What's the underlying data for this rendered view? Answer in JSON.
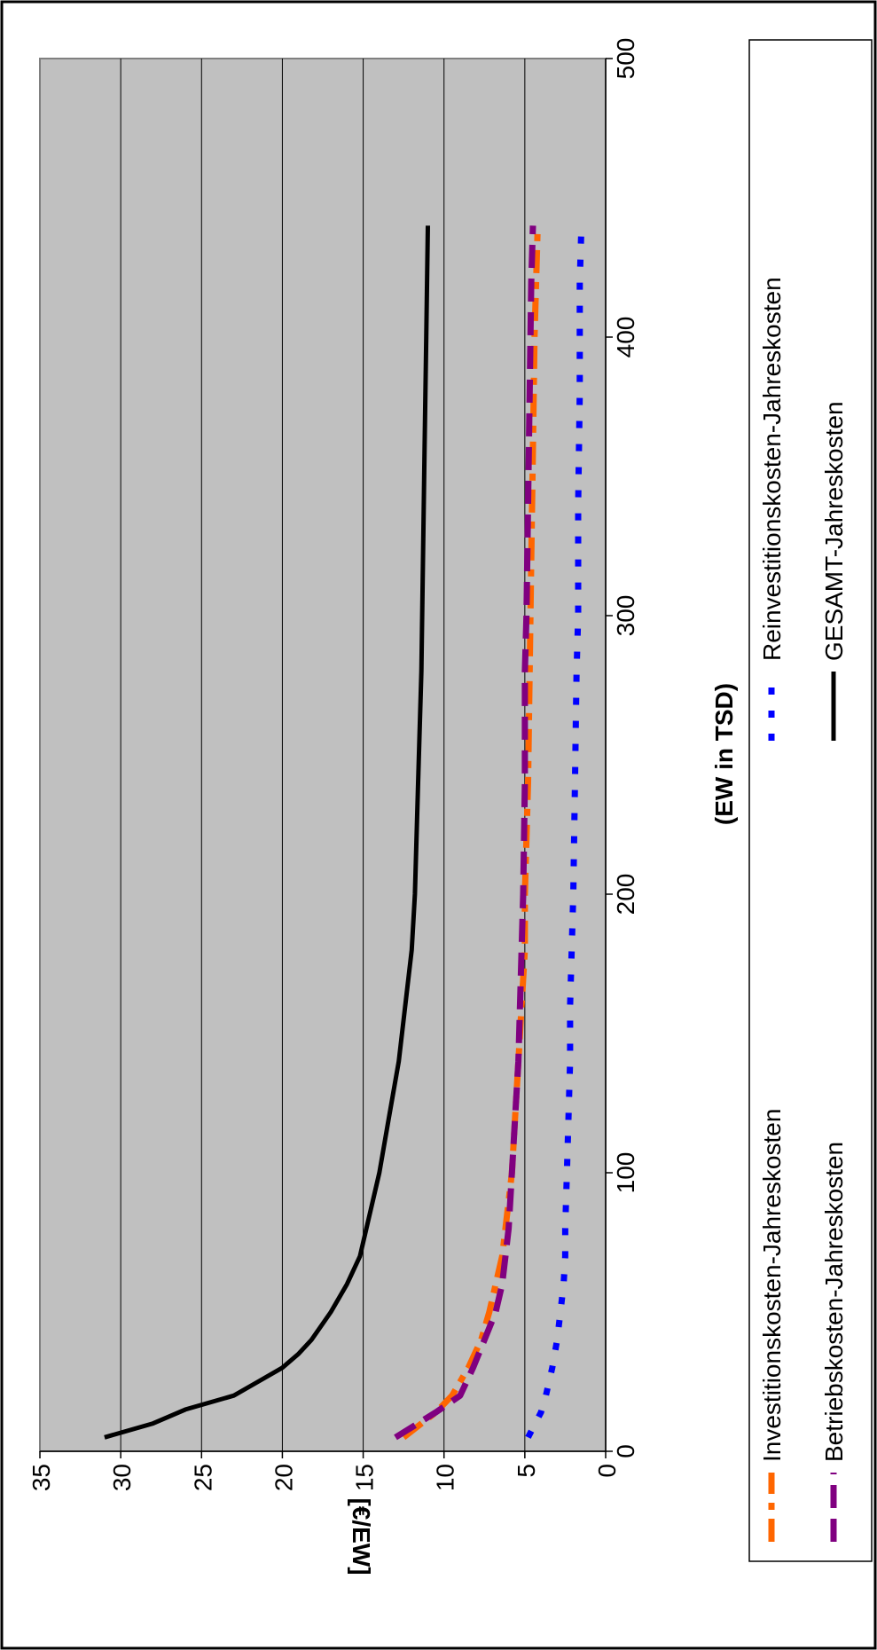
{
  "chart_data": {
    "type": "line",
    "orientation": "rotated-90-ccw",
    "title": "",
    "xlabel": "(EW in TSD)",
    "ylabel": "[€/EW]",
    "xlim": [
      0,
      500
    ],
    "ylim": [
      0,
      35
    ],
    "x_ticks": [
      "0",
      "100",
      "200",
      "300",
      "400",
      "500"
    ],
    "y_ticks": [
      "0",
      "5",
      "10",
      "15",
      "20",
      "25",
      "30",
      "35"
    ],
    "grid": true,
    "legend_position": "bottom",
    "series": [
      {
        "name": "Investitionskosten-Jahreskosten",
        "color": "#FF6600",
        "style": "dashdot",
        "x": [
          5,
          14,
          20,
          30,
          40,
          50,
          60,
          70,
          80,
          100,
          120,
          140,
          160,
          180,
          200,
          240,
          280,
          320,
          360,
          400,
          440
        ],
        "y": [
          12.5,
          10.5,
          9.5,
          8.5,
          7.7,
          7.2,
          6.8,
          6.4,
          6.2,
          5.8,
          5.6,
          5.4,
          5.2,
          5.0,
          5.0,
          4.8,
          4.7,
          4.6,
          4.5,
          4.4,
          4.2
        ]
      },
      {
        "name": "Reinvestitionskosten-Jahreskosten",
        "color": "#0000FF",
        "style": "dotted",
        "x": [
          5,
          14,
          20,
          30,
          40,
          50,
          60,
          70,
          80,
          100,
          120,
          140,
          160,
          180,
          200,
          240,
          280,
          300,
          340,
          380,
          420,
          440
        ],
        "y": [
          4.8,
          4.0,
          3.7,
          3.3,
          3.0,
          2.8,
          2.6,
          2.5,
          2.5,
          2.4,
          2.3,
          2.2,
          2.2,
          2.1,
          2.0,
          1.9,
          1.8,
          1.7,
          1.7,
          1.6,
          1.6,
          1.5
        ]
      },
      {
        "name": "Betriebskosten-Jahreskosten",
        "color": "#800080",
        "style": "dashed",
        "x": [
          5,
          14,
          20,
          30,
          40,
          50,
          60,
          70,
          80,
          100,
          120,
          140,
          160,
          180,
          200,
          240,
          280,
          300,
          340,
          380,
          420,
          440
        ],
        "y": [
          13.0,
          10.5,
          9.0,
          8.2,
          7.5,
          6.8,
          6.4,
          6.2,
          6.0,
          5.8,
          5.6,
          5.4,
          5.3,
          5.2,
          5.1,
          5.0,
          5.0,
          4.9,
          4.8,
          4.7,
          4.6,
          4.5
        ]
      },
      {
        "name": "GESAMT-Jahreskosten",
        "color": "#000000",
        "style": "solid",
        "x": [
          5,
          10,
          15,
          20,
          25,
          30,
          35,
          40,
          50,
          60,
          70,
          80,
          100,
          120,
          140,
          160,
          180,
          200,
          240,
          280,
          320,
          360,
          400,
          440
        ],
        "y": [
          31.0,
          28.0,
          26.0,
          23.0,
          21.5,
          20.0,
          19.0,
          18.2,
          17.0,
          16.0,
          15.2,
          14.8,
          14.0,
          13.4,
          12.8,
          12.4,
          12.0,
          11.8,
          11.6,
          11.4,
          11.3,
          11.2,
          11.1,
          11.0
        ]
      }
    ]
  }
}
